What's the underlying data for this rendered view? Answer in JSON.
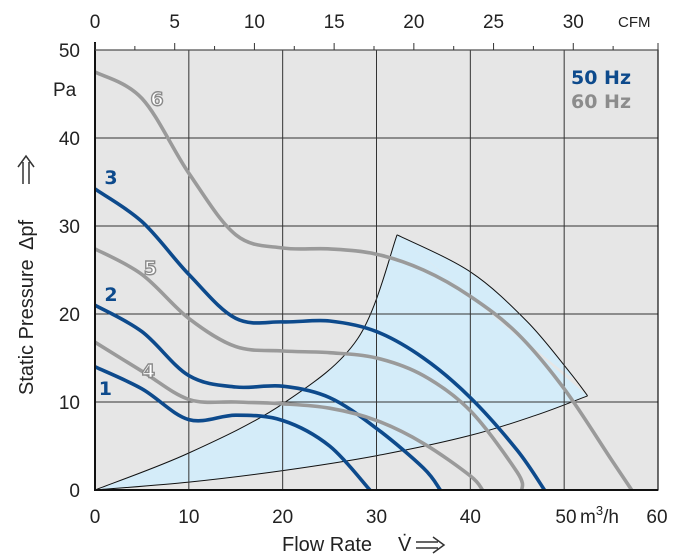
{
  "chart_data": {
    "type": "line",
    "xlabel": "Flow Rate",
    "xsymbol": "V̇",
    "ylabel": "Static Pressure",
    "ysymbol": "Δpf",
    "x_unit": "m³/h",
    "x_unit_base": "m",
    "x_unit_sup": "3",
    "x_unit_tail": "/h",
    "y_unit": "Pa",
    "top_unit": "CFM",
    "xlim": [
      0,
      60
    ],
    "ylim": [
      0,
      50
    ],
    "x_ticks": [
      "0",
      "10",
      "20",
      "30",
      "40",
      "50",
      "60"
    ],
    "y_ticks": [
      "0",
      "10",
      "20",
      "30",
      "40",
      "50"
    ],
    "top_ticks": [
      "0",
      "5",
      "10",
      "15",
      "20",
      "25",
      "30"
    ],
    "grid": true,
    "legend": [
      {
        "label": "50 Hz",
        "color": "#0d4a8c"
      },
      {
        "label": "60 Hz",
        "color": "#8c8c8c"
      }
    ],
    "colors": {
      "hz50": "#0d4a8c",
      "hz60": "#9a9a9a",
      "plot_bg": "#e6e6e6",
      "region_fill": "#d4ecf9",
      "grid": "#333333"
    },
    "operating_region": {
      "lower_boundary": [
        [
          0,
          0
        ],
        [
          10,
          0.9
        ],
        [
          20,
          2.2
        ],
        [
          30,
          3.9
        ],
        [
          40,
          6.2
        ],
        [
          47,
          8.5
        ],
        [
          52.5,
          10.7
        ]
      ],
      "upper_boundary": [
        [
          0,
          0
        ],
        [
          10,
          4.2
        ],
        [
          20,
          9.8
        ],
        [
          28,
          17.2
        ],
        [
          32.2,
          29
        ]
      ],
      "arc": [
        [
          32.2,
          29
        ],
        [
          40,
          24.8
        ],
        [
          46,
          19.2
        ],
        [
          50.5,
          13.5
        ],
        [
          52.5,
          10.7
        ]
      ]
    },
    "series": [
      {
        "name": "1",
        "frequency": "50 Hz",
        "points": [
          [
            0,
            14
          ],
          [
            5,
            11.5
          ],
          [
            10,
            8
          ],
          [
            15,
            8.5
          ],
          [
            20,
            7.9
          ],
          [
            25,
            5
          ],
          [
            29.3,
            0
          ]
        ]
      },
      {
        "name": "2",
        "frequency": "50 Hz",
        "points": [
          [
            0,
            21
          ],
          [
            5,
            18
          ],
          [
            10,
            13
          ],
          [
            15,
            11.7
          ],
          [
            20,
            11.8
          ],
          [
            25,
            10.5
          ],
          [
            30,
            7
          ],
          [
            35,
            2.5
          ],
          [
            36.8,
            0
          ]
        ]
      },
      {
        "name": "3",
        "frequency": "50 Hz",
        "points": [
          [
            0,
            34.2
          ],
          [
            5,
            30.5
          ],
          [
            10,
            24.5
          ],
          [
            15,
            19.5
          ],
          [
            20,
            19.1
          ],
          [
            25,
            19.2
          ],
          [
            30,
            18
          ],
          [
            35,
            15
          ],
          [
            40,
            10.5
          ],
          [
            45,
            4.5
          ],
          [
            47.9,
            0
          ]
        ]
      },
      {
        "name": "4",
        "frequency": "60 Hz",
        "points": [
          [
            0,
            16.8
          ],
          [
            5,
            13.5
          ],
          [
            10,
            10.3
          ],
          [
            15,
            10
          ],
          [
            20,
            9.8
          ],
          [
            25,
            9.3
          ],
          [
            30,
            7.9
          ],
          [
            35,
            5.3
          ],
          [
            40,
            1.6
          ],
          [
            41.3,
            0
          ]
        ]
      },
      {
        "name": "5",
        "frequency": "60 Hz",
        "points": [
          [
            0,
            27.4
          ],
          [
            5,
            24.5
          ],
          [
            10,
            19.5
          ],
          [
            15,
            16.3
          ],
          [
            20,
            15.8
          ],
          [
            25,
            15.6
          ],
          [
            30,
            15
          ],
          [
            35,
            13
          ],
          [
            40,
            9
          ],
          [
            45,
            2
          ],
          [
            45.5,
            0
          ]
        ]
      },
      {
        "name": "6",
        "frequency": "60 Hz",
        "points": [
          [
            0,
            47.5
          ],
          [
            5,
            44.5
          ],
          [
            10,
            36
          ],
          [
            15,
            29
          ],
          [
            20,
            27.5
          ],
          [
            25,
            27.4
          ],
          [
            30,
            26.8
          ],
          [
            35,
            25
          ],
          [
            40,
            22
          ],
          [
            45,
            17.8
          ],
          [
            50,
            11.5
          ],
          [
            55,
            3.5
          ],
          [
            57.2,
            0
          ]
        ]
      }
    ],
    "curve_labels": [
      {
        "text": "1",
        "x": 1.1,
        "y": 10.8,
        "frequency": "50 Hz"
      },
      {
        "text": "2",
        "x": 1.7,
        "y": 21.5,
        "frequency": "50 Hz"
      },
      {
        "text": "3",
        "x": 1.7,
        "y": 34.8,
        "frequency": "50 Hz"
      },
      {
        "text": "4",
        "x": 5.7,
        "y": 12.8,
        "frequency": "60 Hz"
      },
      {
        "text": "5",
        "x": 5.9,
        "y": 24.5,
        "frequency": "60 Hz"
      },
      {
        "text": "6",
        "x": 6.6,
        "y": 43.7,
        "frequency": "60 Hz"
      }
    ]
  }
}
